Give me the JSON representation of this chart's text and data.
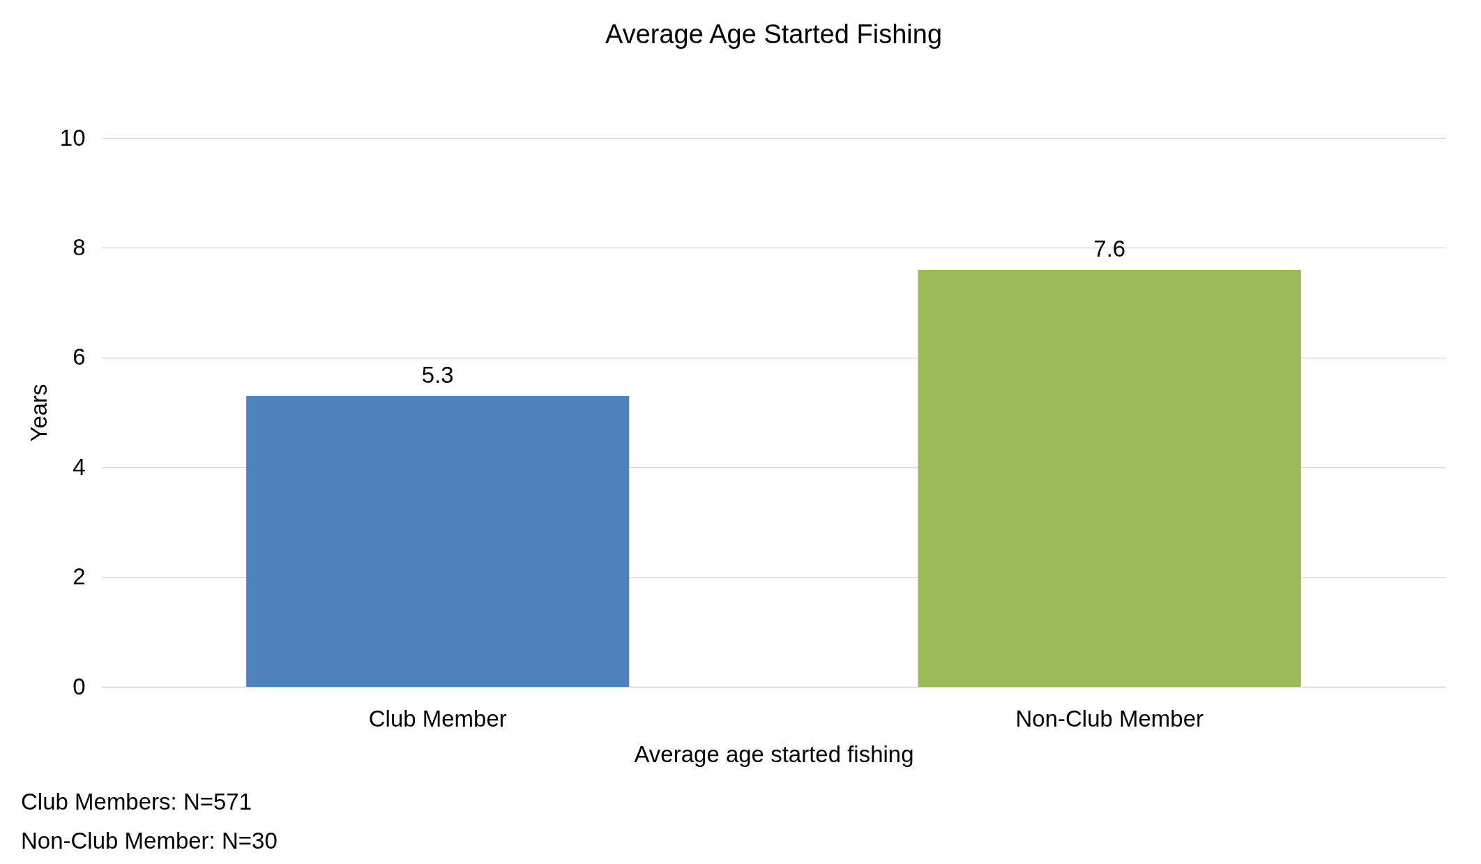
{
  "chart_data": {
    "type": "bar",
    "title": "Average Age Started Fishing",
    "xlabel": "Average age started fishing",
    "ylabel": "Years",
    "categories": [
      "Club Member",
      "Non-Club Member"
    ],
    "values": [
      5.3,
      7.6
    ],
    "colors": [
      "#4f81bd",
      "#9bbb59"
    ],
    "ylim": [
      0,
      10
    ],
    "yticks": [
      0,
      2,
      4,
      6,
      8,
      10
    ],
    "grid": "y",
    "data_labels": true,
    "annotations": [
      "Club Members: N=571",
      "Non-Club Member: N=30"
    ]
  }
}
